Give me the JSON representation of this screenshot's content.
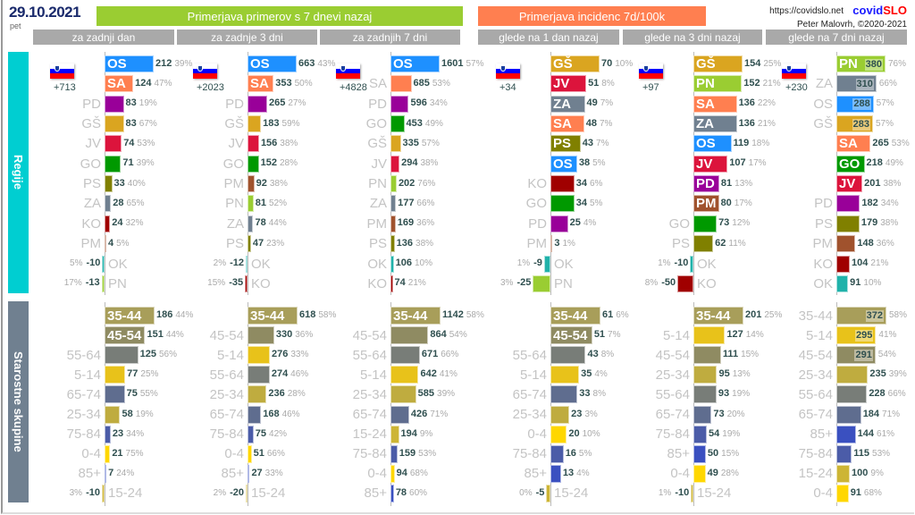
{
  "header": {
    "date": "29.10.2021",
    "day": "pet",
    "title_cases": "Primerjava primerov s 7 dnevi nazaj",
    "title_incidence": "Primerjava incidenc 7d/100k",
    "url": "https://covidslo.net",
    "brand_a": "covid",
    "brand_b": "SLO",
    "author": "Peter Malovrh, ©2020-2021",
    "subtitles": [
      "za zadnji dan",
      "za zadnje 3 dni",
      "za zadnjih 7 dni",
      "glede na 1 dan nazaj",
      "glede na 3 dni nazaj",
      "glede na 7 dni nazaj"
    ]
  },
  "colors": {
    "cases_header": "#9acd32",
    "incidence_header": "#ff7f50",
    "regions_section": "#00ced1",
    "ages_section": "#708090",
    "regions": {
      "OS": "#1e90ff",
      "SA": "#ff7f50",
      "PD": "#990099",
      "GŠ": "#daa520",
      "JV": "#dc143c",
      "GO": "#009900",
      "PS": "#808000",
      "ZA": "#708090",
      "KO": "#a00000",
      "PM": "#a0522d",
      "OK": "#20b2aa",
      "PN": "#9acd32"
    },
    "ages": {
      "35-44": "#a89e5a",
      "45-54": "#8f8b62",
      "55-64": "#787d78",
      "5-14": "#e8c21a",
      "65-74": "#5f6d8f",
      "25-34": "#bfac3f",
      "75-84": "#4b5ca8",
      "0-4": "#ffd700",
      "85+": "#3a50c0",
      "15-24": "#cdb535"
    }
  },
  "sections": {
    "regions": "Regije",
    "ages": "Starostne skupine"
  },
  "chart_data": [
    {
      "type": "bar",
      "orientation": "horizontal",
      "title": "za zadnji dan",
      "total": "+713",
      "regions": [
        [
          "OS",
          212,
          "39%"
        ],
        [
          "SA",
          124,
          "47%"
        ],
        [
          "PD",
          83,
          "19%"
        ],
        [
          "GŠ",
          83,
          "67%"
        ],
        [
          "JV",
          74,
          "53%"
        ],
        [
          "GO",
          71,
          "39%"
        ],
        [
          "PS",
          33,
          "40%"
        ],
        [
          "ZA",
          28,
          "65%"
        ],
        [
          "KO",
          24,
          "32%"
        ],
        [
          "PM",
          4,
          "5%"
        ],
        [
          "OK",
          -10,
          "5%"
        ],
        [
          "PN",
          -13,
          "17%"
        ]
      ],
      "ages": [
        [
          "35-44",
          186,
          "44%"
        ],
        [
          "45-54",
          151,
          "44%"
        ],
        [
          "55-64",
          125,
          "56%"
        ],
        [
          "5-14",
          77,
          "25%"
        ],
        [
          "65-74",
          75,
          "55%"
        ],
        [
          "25-34",
          58,
          "19%"
        ],
        [
          "75-84",
          23,
          "34%"
        ],
        [
          "0-4",
          21,
          "75%"
        ],
        [
          "85+",
          7,
          "24%"
        ],
        [
          "15-24",
          -10,
          "3%"
        ]
      ]
    },
    {
      "type": "bar",
      "orientation": "horizontal",
      "title": "za zadnje 3 dni",
      "total": "+2023",
      "regions": [
        [
          "OS",
          663,
          "43%"
        ],
        [
          "SA",
          353,
          "50%"
        ],
        [
          "PD",
          265,
          "27%"
        ],
        [
          "GŠ",
          183,
          "59%"
        ],
        [
          "JV",
          156,
          "38%"
        ],
        [
          "GO",
          152,
          "28%"
        ],
        [
          "PM",
          92,
          "38%"
        ],
        [
          "PN",
          81,
          "52%"
        ],
        [
          "ZA",
          78,
          "44%"
        ],
        [
          "PS",
          47,
          "23%"
        ],
        [
          "OK",
          -12,
          "2%"
        ],
        [
          "KO",
          -35,
          "15%"
        ]
      ],
      "ages": [
        [
          "35-44",
          618,
          "58%"
        ],
        [
          "45-54",
          330,
          "36%"
        ],
        [
          "5-14",
          276,
          "33%"
        ],
        [
          "55-64",
          274,
          "46%"
        ],
        [
          "25-34",
          236,
          "28%"
        ],
        [
          "65-74",
          168,
          "46%"
        ],
        [
          "75-84",
          75,
          "42%"
        ],
        [
          "0-4",
          51,
          "66%"
        ],
        [
          "85+",
          27,
          "33%"
        ],
        [
          "15-24",
          -20,
          "2%"
        ]
      ]
    },
    {
      "type": "bar",
      "orientation": "horizontal",
      "title": "za zadnjih 7 dni",
      "total": "+4828",
      "regions": [
        [
          "OS",
          1601,
          "57%"
        ],
        [
          "SA",
          685,
          "53%"
        ],
        [
          "PD",
          596,
          "34%"
        ],
        [
          "GO",
          453,
          "49%"
        ],
        [
          "GŠ",
          335,
          "57%"
        ],
        [
          "JV",
          294,
          "38%"
        ],
        [
          "PN",
          202,
          "76%"
        ],
        [
          "ZA",
          177,
          "66%"
        ],
        [
          "PM",
          169,
          "36%"
        ],
        [
          "PS",
          136,
          "38%"
        ],
        [
          "OK",
          106,
          "10%"
        ],
        [
          "KO",
          74,
          "21%"
        ]
      ],
      "ages": [
        [
          "35-44",
          1142,
          "58%"
        ],
        [
          "45-54",
          864,
          "54%"
        ],
        [
          "55-64",
          671,
          "66%"
        ],
        [
          "5-14",
          642,
          "41%"
        ],
        [
          "25-34",
          585,
          "39%"
        ],
        [
          "65-74",
          426,
          "71%"
        ],
        [
          "15-24",
          194,
          "9%"
        ],
        [
          "75-84",
          159,
          "53%"
        ],
        [
          "0-4",
          94,
          "68%"
        ],
        [
          "85+",
          78,
          "60%"
        ]
      ]
    },
    {
      "type": "bar",
      "orientation": "horizontal",
      "title": "glede na 1 dan nazaj",
      "total": "+34",
      "regions": [
        [
          "GŠ",
          70,
          "10%"
        ],
        [
          "JV",
          51,
          "8%"
        ],
        [
          "ZA",
          49,
          "7%"
        ],
        [
          "SA",
          48,
          "7%"
        ],
        [
          "PS",
          43,
          "7%"
        ],
        [
          "OS",
          38,
          "5%"
        ],
        [
          "KO",
          34,
          "6%"
        ],
        [
          "GO",
          34,
          "5%"
        ],
        [
          "PD",
          25,
          "4%"
        ],
        [
          "PM",
          3,
          "1%"
        ],
        [
          "OK",
          -9,
          "1%"
        ],
        [
          "PN",
          -25,
          "3%"
        ]
      ],
      "ages": [
        [
          "35-44",
          61,
          "6%"
        ],
        [
          "45-54",
          51,
          "7%"
        ],
        [
          "55-64",
          43,
          "8%"
        ],
        [
          "5-14",
          35,
          "4%"
        ],
        [
          "65-74",
          33,
          "8%"
        ],
        [
          "25-34",
          23,
          "3%"
        ],
        [
          "0-4",
          20,
          "10%"
        ],
        [
          "75-84",
          16,
          "5%"
        ],
        [
          "85+",
          13,
          "4%"
        ],
        [
          "15-24",
          -5,
          "0%"
        ]
      ]
    },
    {
      "type": "bar",
      "orientation": "horizontal",
      "title": "glede na 3 dni nazaj",
      "total": "+97",
      "regions": [
        [
          "GŠ",
          154,
          "25%"
        ],
        [
          "PN",
          152,
          "21%"
        ],
        [
          "SA",
          136,
          "22%"
        ],
        [
          "ZA",
          136,
          "21%"
        ],
        [
          "OS",
          119,
          "18%"
        ],
        [
          "JV",
          107,
          "17%"
        ],
        [
          "PD",
          81,
          "13%"
        ],
        [
          "PM",
          80,
          "17%"
        ],
        [
          "GO",
          73,
          "12%"
        ],
        [
          "PS",
          62,
          "11%"
        ],
        [
          "OK",
          -10,
          "1%"
        ],
        [
          "KO",
          -50,
          "8%"
        ]
      ],
      "ages": [
        [
          "35-44",
          201,
          "25%"
        ],
        [
          "5-14",
          127,
          "14%"
        ],
        [
          "45-54",
          111,
          "15%"
        ],
        [
          "25-34",
          95,
          "13%"
        ],
        [
          "55-64",
          93,
          "19%"
        ],
        [
          "65-74",
          73,
          "20%"
        ],
        [
          "75-84",
          54,
          "19%"
        ],
        [
          "85+",
          50,
          "15%"
        ],
        [
          "0-4",
          49,
          "28%"
        ],
        [
          "15-24",
          -10,
          "1%"
        ]
      ]
    },
    {
      "type": "bar",
      "orientation": "horizontal",
      "title": "glede na 7 dni nazaj",
      "total": "+230",
      "regions": [
        [
          "PN",
          380,
          "76%"
        ],
        [
          "ZA",
          310,
          "66%"
        ],
        [
          "OS",
          288,
          "57%"
        ],
        [
          "GŠ",
          283,
          "57%"
        ],
        [
          "SA",
          265,
          "53%"
        ],
        [
          "GO",
          218,
          "49%"
        ],
        [
          "JV",
          201,
          "38%"
        ],
        [
          "PD",
          182,
          "34%"
        ],
        [
          "PS",
          179,
          "38%"
        ],
        [
          "PM",
          148,
          "36%"
        ],
        [
          "KO",
          104,
          "21%"
        ],
        [
          "OK",
          91,
          "10%"
        ]
      ],
      "ages": [
        [
          "35-44",
          372,
          "58%"
        ],
        [
          "5-14",
          295,
          "41%"
        ],
        [
          "45-54",
          291,
          "54%"
        ],
        [
          "25-34",
          235,
          "39%"
        ],
        [
          "55-64",
          228,
          "66%"
        ],
        [
          "65-74",
          184,
          "71%"
        ],
        [
          "85+",
          144,
          "61%"
        ],
        [
          "75-84",
          115,
          "53%"
        ],
        [
          "15-24",
          100,
          "9%"
        ],
        [
          "0-4",
          91,
          "68%"
        ]
      ]
    }
  ]
}
